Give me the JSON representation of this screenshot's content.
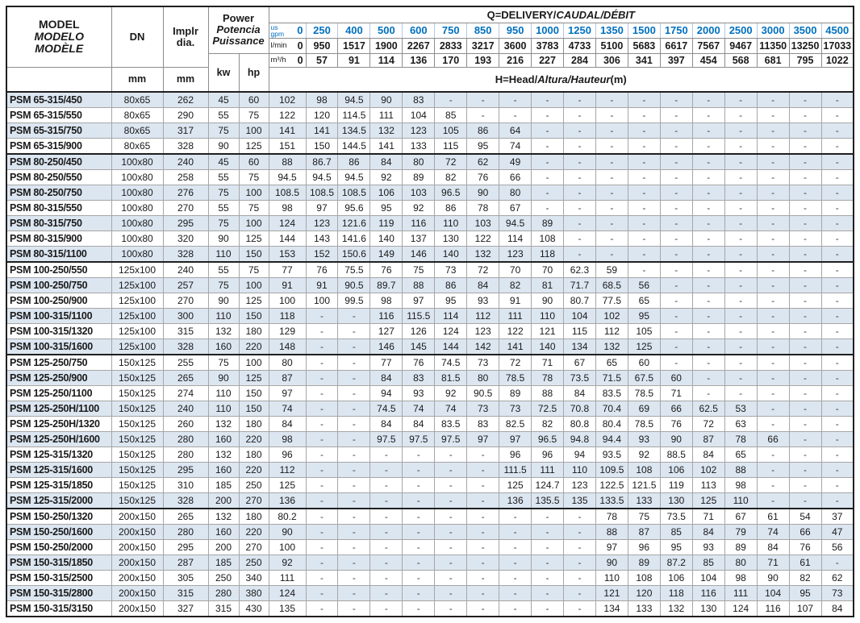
{
  "colors": {
    "accent_blue": "#0070c0",
    "row_stripe": "#dce6f1",
    "grid_border": "#a6a6a6",
    "heavy_border": "#1f1f1f"
  },
  "table": {
    "header": {
      "model_lines": [
        "MODEL",
        "MODELO",
        "MODÈLE"
      ],
      "dn_label": "DN",
      "impeller_lines": [
        "Implr",
        "dia."
      ],
      "power_lines": [
        "Power",
        "Potencia",
        "Puissance"
      ],
      "unit_mm_dn": "mm",
      "unit_mm_impeller": "mm",
      "unit_kw": "kw",
      "unit_hp": "hp",
      "q_title_parts": [
        "Q=DELIVERY/",
        "CAUDAL/DÉBIT"
      ],
      "h_title_parts": [
        "H=Head/",
        "Altura/Hauteur",
        "(m)"
      ],
      "flow_unit_labels": {
        "gpm_line1": "us",
        "gpm_line2": "gpm",
        "lmin": "l/min",
        "m3h": "m³/h"
      },
      "flow_gpm": [
        "0",
        "250",
        "400",
        "500",
        "600",
        "750",
        "850",
        "950",
        "1000",
        "1250",
        "1350",
        "1500",
        "1750",
        "2000",
        "2500",
        "3000",
        "3500",
        "4500"
      ],
      "flow_lmin": [
        "0",
        "950",
        "1517",
        "1900",
        "2267",
        "2833",
        "3217",
        "3600",
        "3783",
        "4733",
        "5100",
        "5683",
        "6617",
        "7567",
        "9467",
        "11350",
        "13250",
        "17033"
      ],
      "flow_m3h": [
        "0",
        "57",
        "91",
        "114",
        "136",
        "170",
        "193",
        "216",
        "227",
        "284",
        "306",
        "341",
        "397",
        "454",
        "568",
        "681",
        "795",
        "1022"
      ]
    },
    "rows": [
      {
        "model": "PSM 65-315/450",
        "dn": "80x65",
        "implr": "262",
        "kw": "45",
        "hp": "60",
        "h": [
          "102",
          "98",
          "94.5",
          "90",
          "83",
          "-",
          "-",
          "-",
          "-",
          "-",
          "-",
          "-",
          "-",
          "-",
          "-",
          "-",
          "-",
          "-"
        ]
      },
      {
        "model": "PSM 65-315/550",
        "dn": "80x65",
        "implr": "290",
        "kw": "55",
        "hp": "75",
        "h": [
          "122",
          "120",
          "114.5",
          "111",
          "104",
          "85",
          "-",
          "-",
          "-",
          "-",
          "-",
          "-",
          "-",
          "-",
          "-",
          "-",
          "-",
          "-"
        ]
      },
      {
        "model": "PSM 65-315/750",
        "dn": "80x65",
        "implr": "317",
        "kw": "75",
        "hp": "100",
        "h": [
          "141",
          "141",
          "134.5",
          "132",
          "123",
          "105",
          "86",
          "64",
          "-",
          "-",
          "-",
          "-",
          "-",
          "-",
          "-",
          "-",
          "-",
          "-"
        ]
      },
      {
        "model": "PSM 65-315/900",
        "dn": "80x65",
        "implr": "328",
        "kw": "90",
        "hp": "125",
        "h": [
          "151",
          "150",
          "144.5",
          "141",
          "133",
          "115",
          "95",
          "74",
          "-",
          "-",
          "-",
          "-",
          "-",
          "-",
          "-",
          "-",
          "-",
          "-"
        ]
      },
      {
        "model": "PSM 80-250/450",
        "dn": "100x80",
        "implr": "240",
        "kw": "45",
        "hp": "60",
        "group_start": true,
        "h": [
          "88",
          "86.7",
          "86",
          "84",
          "80",
          "72",
          "62",
          "49",
          "-",
          "-",
          "-",
          "-",
          "-",
          "-",
          "-",
          "-",
          "-",
          "-"
        ]
      },
      {
        "model": "PSM 80-250/550",
        "dn": "100x80",
        "implr": "258",
        "kw": "55",
        "hp": "75",
        "h": [
          "94.5",
          "94.5",
          "94.5",
          "92",
          "89",
          "82",
          "76",
          "66",
          "-",
          "-",
          "-",
          "-",
          "-",
          "-",
          "-",
          "-",
          "-",
          "-"
        ]
      },
      {
        "model": "PSM 80-250/750",
        "dn": "100x80",
        "implr": "276",
        "kw": "75",
        "hp": "100",
        "h": [
          "108.5",
          "108.5",
          "108.5",
          "106",
          "103",
          "96.5",
          "90",
          "80",
          "-",
          "-",
          "-",
          "-",
          "-",
          "-",
          "-",
          "-",
          "-",
          "-"
        ]
      },
      {
        "model": "PSM 80-315/550",
        "dn": "100x80",
        "implr": "270",
        "kw": "55",
        "hp": "75",
        "h": [
          "98",
          "97",
          "95.6",
          "95",
          "92",
          "86",
          "78",
          "67",
          "-",
          "-",
          "-",
          "-",
          "-",
          "-",
          "-",
          "-",
          "-",
          "-"
        ]
      },
      {
        "model": "PSM 80-315/750",
        "dn": "100x80",
        "implr": "295",
        "kw": "75",
        "hp": "100",
        "h": [
          "124",
          "123",
          "121.6",
          "119",
          "116",
          "110",
          "103",
          "94.5",
          "89",
          "-",
          "-",
          "-",
          "-",
          "-",
          "-",
          "-",
          "-",
          "-"
        ]
      },
      {
        "model": "PSM 80-315/900",
        "dn": "100x80",
        "implr": "320",
        "kw": "90",
        "hp": "125",
        "h": [
          "144",
          "143",
          "141.6",
          "140",
          "137",
          "130",
          "122",
          "114",
          "108",
          "-",
          "-",
          "-",
          "-",
          "-",
          "-",
          "-",
          "-",
          "-"
        ]
      },
      {
        "model": "PSM 80-315/1100",
        "dn": "100x80",
        "implr": "328",
        "kw": "110",
        "hp": "150",
        "h": [
          "153",
          "152",
          "150.6",
          "149",
          "146",
          "140",
          "132",
          "123",
          "118",
          "-",
          "-",
          "-",
          "-",
          "-",
          "-",
          "-",
          "-",
          "-"
        ]
      },
      {
        "model": "PSM 100-250/550",
        "dn": "125x100",
        "implr": "240",
        "kw": "55",
        "hp": "75",
        "group_start": true,
        "h": [
          "77",
          "76",
          "75.5",
          "76",
          "75",
          "73",
          "72",
          "70",
          "70",
          "62.3",
          "59",
          "-",
          "-",
          "-",
          "-",
          "-",
          "-",
          "-"
        ]
      },
      {
        "model": "PSM 100-250/750",
        "dn": "125x100",
        "implr": "257",
        "kw": "75",
        "hp": "100",
        "h": [
          "91",
          "91",
          "90.5",
          "89.7",
          "88",
          "86",
          "84",
          "82",
          "81",
          "71.7",
          "68.5",
          "56",
          "-",
          "-",
          "-",
          "-",
          "-",
          "-"
        ]
      },
      {
        "model": "PSM 100-250/900",
        "dn": "125x100",
        "implr": "270",
        "kw": "90",
        "hp": "125",
        "h": [
          "100",
          "100",
          "99.5",
          "98",
          "97",
          "95",
          "93",
          "91",
          "90",
          "80.7",
          "77.5",
          "65",
          "-",
          "-",
          "-",
          "-",
          "-",
          "-"
        ]
      },
      {
        "model": "PSM 100-315/1100",
        "dn": "125x100",
        "implr": "300",
        "kw": "110",
        "hp": "150",
        "h": [
          "118",
          "-",
          "-",
          "116",
          "115.5",
          "114",
          "112",
          "111",
          "110",
          "104",
          "102",
          "95",
          "-",
          "-",
          "-",
          "-",
          "-",
          "-"
        ]
      },
      {
        "model": "PSM 100-315/1320",
        "dn": "125x100",
        "implr": "315",
        "kw": "132",
        "hp": "180",
        "h": [
          "129",
          "-",
          "-",
          "127",
          "126",
          "124",
          "123",
          "122",
          "121",
          "115",
          "112",
          "105",
          "-",
          "-",
          "-",
          "-",
          "-",
          "-"
        ]
      },
      {
        "model": "PSM 100-315/1600",
        "dn": "125x100",
        "implr": "328",
        "kw": "160",
        "hp": "220",
        "h": [
          "148",
          "-",
          "-",
          "146",
          "145",
          "144",
          "142",
          "141",
          "140",
          "134",
          "132",
          "125",
          "-",
          "-",
          "-",
          "-",
          "-",
          "-"
        ]
      },
      {
        "model": "PSM 125-250/750",
        "dn": "150x125",
        "implr": "255",
        "kw": "75",
        "hp": "100",
        "group_start": true,
        "h": [
          "80",
          "-",
          "-",
          "77",
          "76",
          "74.5",
          "73",
          "72",
          "71",
          "67",
          "65",
          "60",
          "-",
          "-",
          "-",
          "-",
          "-",
          "-"
        ]
      },
      {
        "model": "PSM 125-250/900",
        "dn": "150x125",
        "implr": "265",
        "kw": "90",
        "hp": "125",
        "h": [
          "87",
          "-",
          "-",
          "84",
          "83",
          "81.5",
          "80",
          "78.5",
          "78",
          "73.5",
          "71.5",
          "67.5",
          "60",
          "-",
          "-",
          "-",
          "-",
          "-"
        ]
      },
      {
        "model": "PSM 125-250/1100",
        "dn": "150x125",
        "implr": "274",
        "kw": "110",
        "hp": "150",
        "h": [
          "97",
          "-",
          "-",
          "94",
          "93",
          "92",
          "90.5",
          "89",
          "88",
          "84",
          "83.5",
          "78.5",
          "71",
          "-",
          "-",
          "-",
          "-",
          "-"
        ]
      },
      {
        "model": "PSM 125-250H/1100",
        "dn": "150x125",
        "implr": "240",
        "kw": "110",
        "hp": "150",
        "h": [
          "74",
          "-",
          "-",
          "74.5",
          "74",
          "74",
          "73",
          "73",
          "72.5",
          "70.8",
          "70.4",
          "69",
          "66",
          "62.5",
          "53",
          "-",
          "-",
          "-"
        ]
      },
      {
        "model": "PSM 125-250H/1320",
        "dn": "150x125",
        "implr": "260",
        "kw": "132",
        "hp": "180",
        "h": [
          "84",
          "-",
          "-",
          "84",
          "84",
          "83.5",
          "83",
          "82.5",
          "82",
          "80.8",
          "80.4",
          "78.5",
          "76",
          "72",
          "63",
          "-",
          "-",
          "-"
        ]
      },
      {
        "model": "PSM 125-250H/1600",
        "dn": "150x125",
        "implr": "280",
        "kw": "160",
        "hp": "220",
        "h": [
          "98",
          "-",
          "-",
          "97.5",
          "97.5",
          "97.5",
          "97",
          "97",
          "96.5",
          "94.8",
          "94.4",
          "93",
          "90",
          "87",
          "78",
          "66",
          "-",
          "-"
        ]
      },
      {
        "model": "PSM 125-315/1320",
        "dn": "150x125",
        "implr": "280",
        "kw": "132",
        "hp": "180",
        "h": [
          "96",
          "-",
          "-",
          "-",
          "-",
          "-",
          "-",
          "96",
          "96",
          "94",
          "93.5",
          "92",
          "88.5",
          "84",
          "65",
          "-",
          "-",
          "-"
        ]
      },
      {
        "model": "PSM 125-315/1600",
        "dn": "150x125",
        "implr": "295",
        "kw": "160",
        "hp": "220",
        "h": [
          "112",
          "-",
          "-",
          "-",
          "-",
          "-",
          "-",
          "111.5",
          "111",
          "110",
          "109.5",
          "108",
          "106",
          "102",
          "88",
          "-",
          "-",
          "-"
        ]
      },
      {
        "model": "PSM 125-315/1850",
        "dn": "150x125",
        "implr": "310",
        "kw": "185",
        "hp": "250",
        "h": [
          "125",
          "-",
          "-",
          "-",
          "-",
          "-",
          "-",
          "125",
          "124.7",
          "123",
          "122.5",
          "121.5",
          "119",
          "113",
          "98",
          "-",
          "-",
          "-"
        ]
      },
      {
        "model": "PSM 125-315/2000",
        "dn": "150x125",
        "implr": "328",
        "kw": "200",
        "hp": "270",
        "h": [
          "136",
          "-",
          "-",
          "-",
          "-",
          "-",
          "-",
          "136",
          "135.5",
          "135",
          "133.5",
          "133",
          "130",
          "125",
          "110",
          "-",
          "-",
          "-"
        ]
      },
      {
        "model": "PSM 150-250/1320",
        "dn": "200x150",
        "implr": "265",
        "kw": "132",
        "hp": "180",
        "group_start": true,
        "h": [
          "80.2",
          "-",
          "-",
          "-",
          "-",
          "-",
          "-",
          "-",
          "-",
          "-",
          "78",
          "75",
          "73.5",
          "71",
          "67",
          "61",
          "54",
          "37"
        ]
      },
      {
        "model": "PSM 150-250/1600",
        "dn": "200x150",
        "implr": "280",
        "kw": "160",
        "hp": "220",
        "h": [
          "90",
          "-",
          "-",
          "-",
          "-",
          "-",
          "-",
          "-",
          "-",
          "-",
          "88",
          "87",
          "85",
          "84",
          "79",
          "74",
          "66",
          "47"
        ]
      },
      {
        "model": "PSM 150-250/2000",
        "dn": "200x150",
        "implr": "295",
        "kw": "200",
        "hp": "270",
        "h": [
          "100",
          "-",
          "-",
          "-",
          "-",
          "-",
          "-",
          "-",
          "-",
          "-",
          "97",
          "96",
          "95",
          "93",
          "89",
          "84",
          "76",
          "56"
        ]
      },
      {
        "model": "PSM 150-315/1850",
        "dn": "200x150",
        "implr": "287",
        "kw": "185",
        "hp": "250",
        "h": [
          "92",
          "-",
          "-",
          "-",
          "-",
          "-",
          "-",
          "-",
          "-",
          "-",
          "90",
          "89",
          "87.2",
          "85",
          "80",
          "71",
          "61",
          "-"
        ]
      },
      {
        "model": "PSM 150-315/2500",
        "dn": "200x150",
        "implr": "305",
        "kw": "250",
        "hp": "340",
        "h": [
          "111",
          "-",
          "-",
          "-",
          "-",
          "-",
          "-",
          "-",
          "-",
          "-",
          "110",
          "108",
          "106",
          "104",
          "98",
          "90",
          "82",
          "62"
        ]
      },
      {
        "model": "PSM 150-315/2800",
        "dn": "200x150",
        "implr": "315",
        "kw": "280",
        "hp": "380",
        "h": [
          "124",
          "-",
          "-",
          "-",
          "-",
          "-",
          "-",
          "-",
          "-",
          "-",
          "121",
          "120",
          "118",
          "116",
          "111",
          "104",
          "95",
          "73"
        ]
      },
      {
        "model": "PSM 150-315/3150",
        "dn": "200x150",
        "implr": "327",
        "kw": "315",
        "hp": "430",
        "h": [
          "135",
          "-",
          "-",
          "-",
          "-",
          "-",
          "-",
          "-",
          "-",
          "-",
          "134",
          "133",
          "132",
          "130",
          "124",
          "116",
          "107",
          "84"
        ]
      }
    ]
  }
}
